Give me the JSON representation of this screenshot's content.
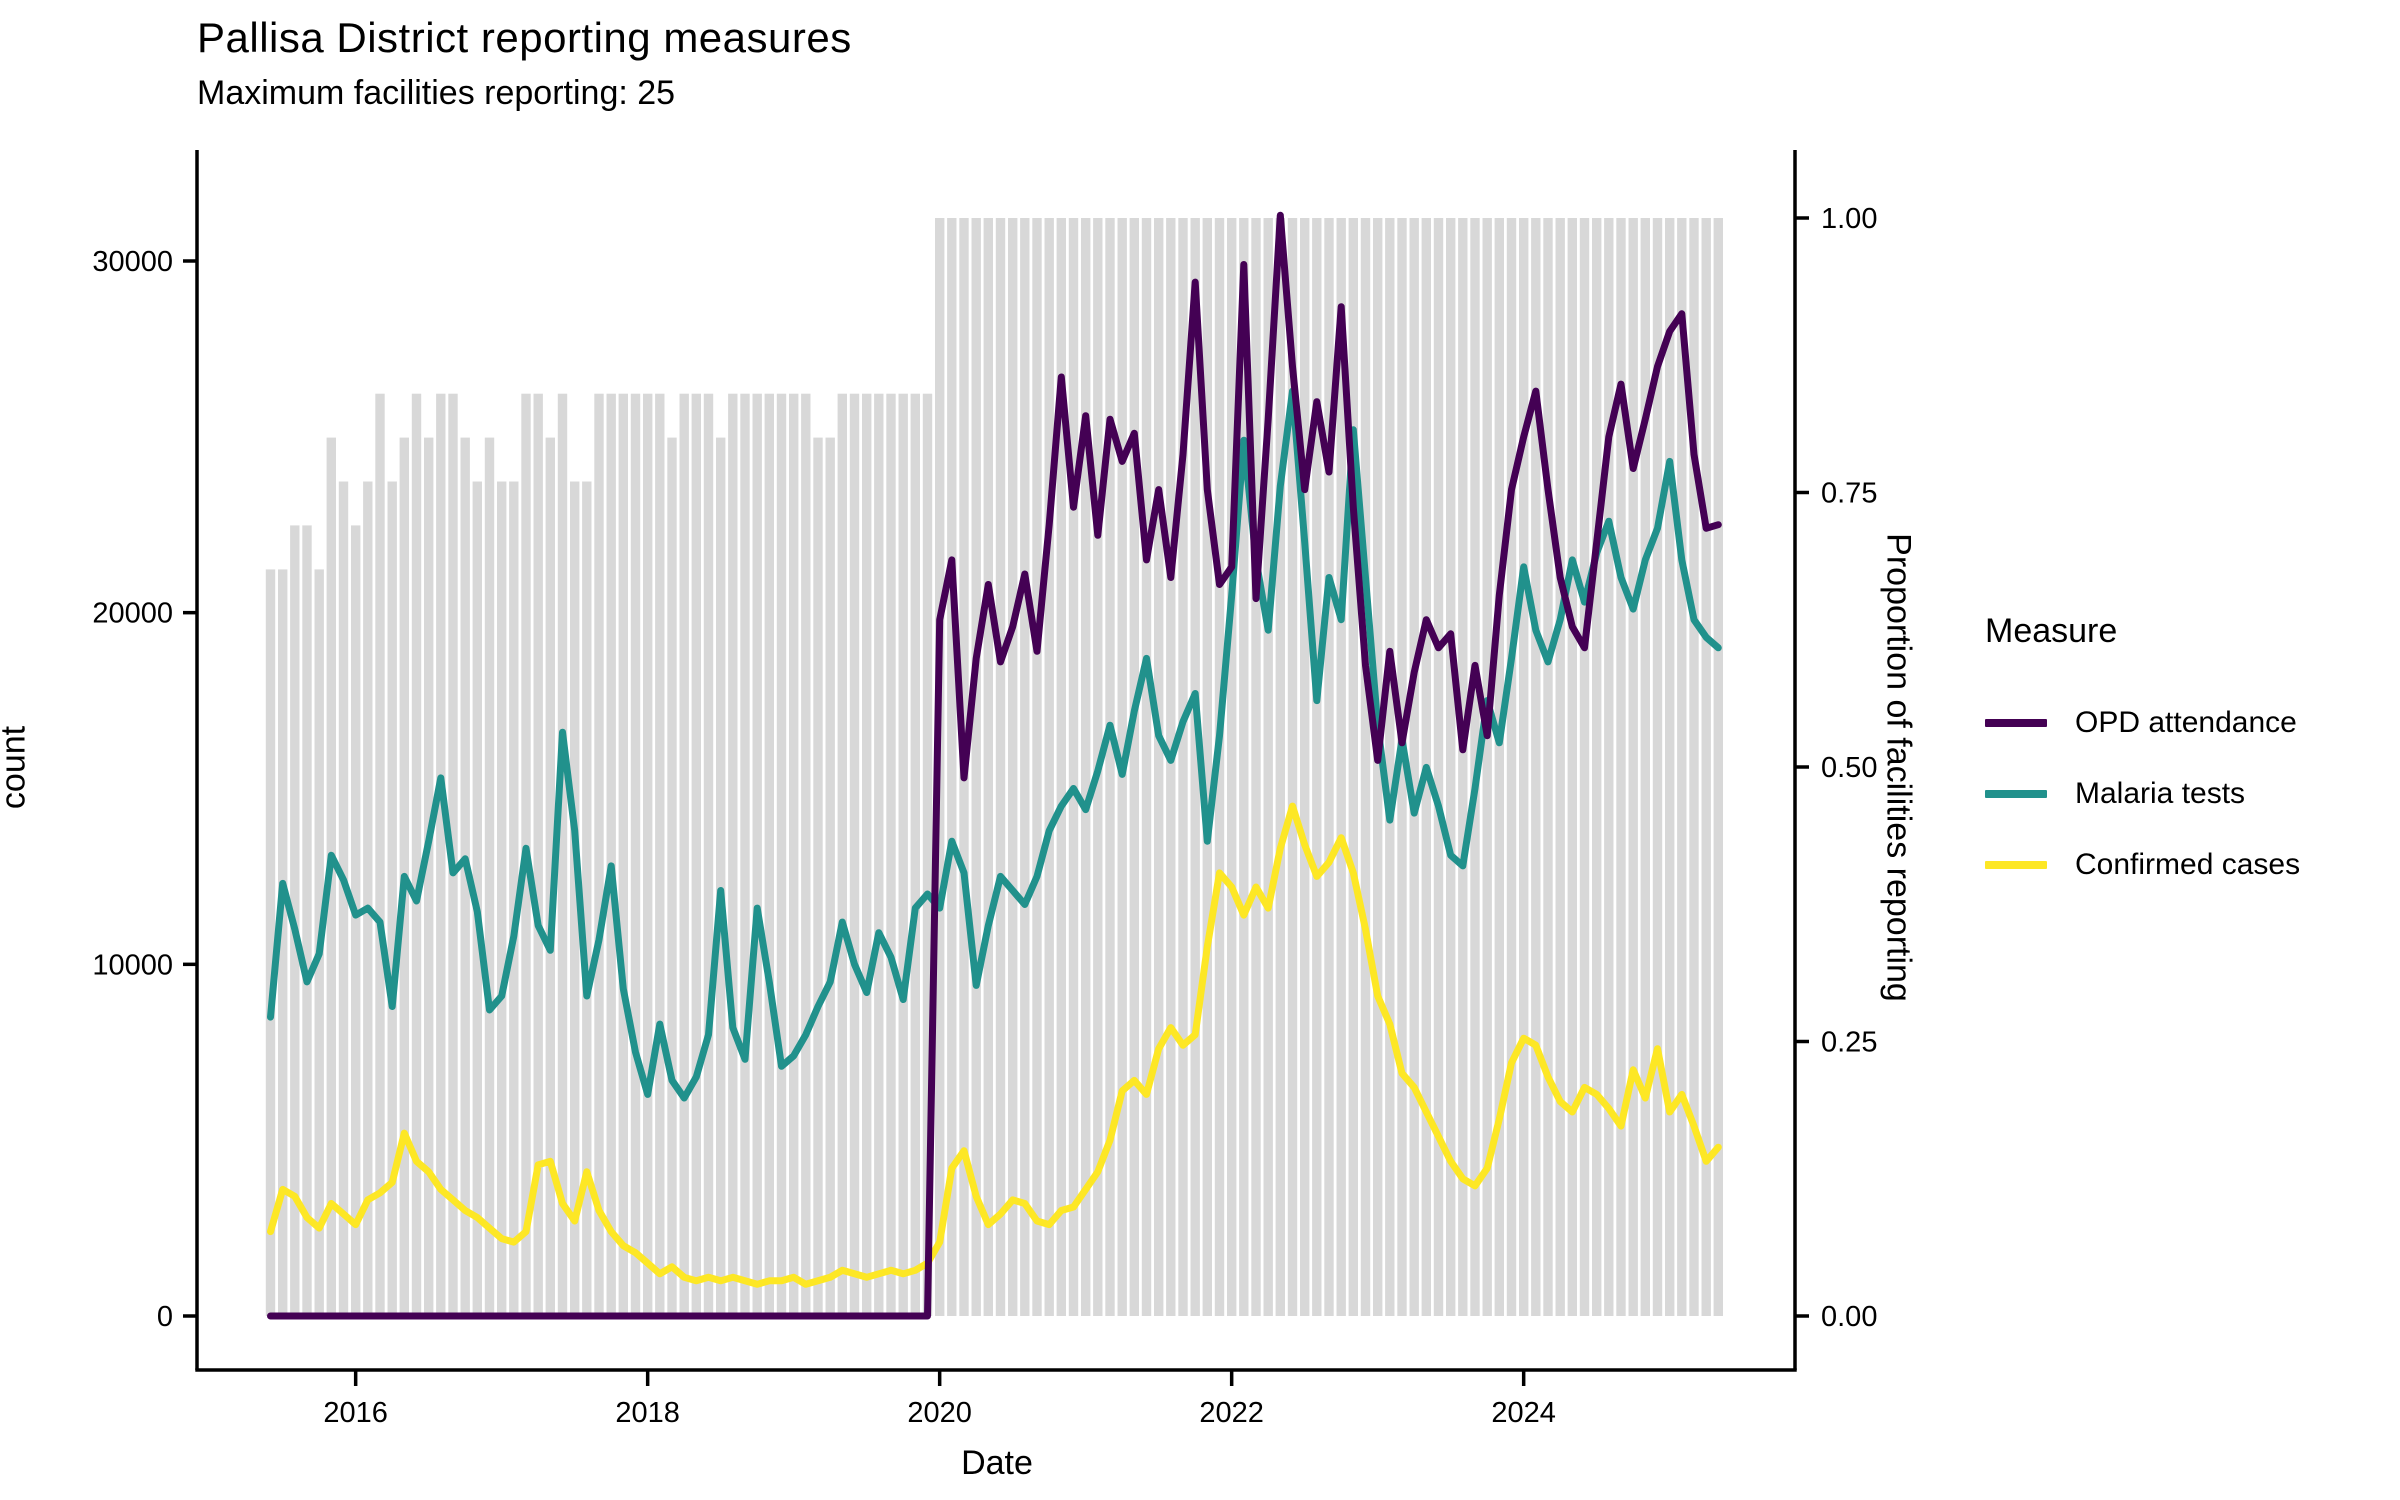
{
  "title": "Pallisa District reporting measures",
  "subtitle": "Maximum facilities reporting: 25",
  "axes": {
    "x": {
      "label": "Date",
      "ticks": [
        2016,
        2018,
        2020,
        2022,
        2024
      ]
    },
    "y_left": {
      "label": "count",
      "ticks": [
        0,
        10000,
        20000,
        30000
      ],
      "range": [
        0,
        31400
      ]
    },
    "y_right": {
      "label": "Proportion of facilities reporting",
      "ticks": [
        "0.00",
        "0.25",
        "0.50",
        "0.75",
        "1.00"
      ],
      "range": [
        0,
        1
      ]
    }
  },
  "legend": {
    "title": "Measure",
    "items": [
      {
        "label": "OPD attendance",
        "color": "#440154"
      },
      {
        "label": "Malaria tests",
        "color": "#21918c"
      },
      {
        "label": "Confirmed cases",
        "color": "#fde725"
      }
    ]
  },
  "colors": {
    "bars": "#d8d8d8",
    "opd": "#440154",
    "malaria": "#21918c",
    "confirmed": "#fde725",
    "axis": "#000000",
    "text": "#000000",
    "background": "#ffffff"
  },
  "chart_data": {
    "type": "line+bar",
    "x": {
      "start": "2015-06",
      "end": "2025-05",
      "frequency": "monthly",
      "n": 120
    },
    "title": "Pallisa District reporting measures",
    "subtitle": "Maximum facilities reporting: 25",
    "xlabel": "Date",
    "ylabel_left": "count",
    "ylabel_right": "Proportion of facilities reporting",
    "legend_position": "right",
    "grid": false,
    "bar_series": {
      "name": "Proportion of facilities reporting",
      "axis": "right",
      "color": "#d8d8d8",
      "values": [
        0.68,
        0.68,
        0.72,
        0.72,
        0.68,
        0.8,
        0.76,
        0.72,
        0.76,
        0.84,
        0.76,
        0.8,
        0.84,
        0.8,
        0.84,
        0.84,
        0.8,
        0.76,
        0.8,
        0.76,
        0.76,
        0.84,
        0.84,
        0.8,
        0.84,
        0.76,
        0.76,
        0.84,
        0.84,
        0.84,
        0.84,
        0.84,
        0.84,
        0.8,
        0.84,
        0.84,
        0.84,
        0.8,
        0.84,
        0.84,
        0.84,
        0.84,
        0.84,
        0.84,
        0.84,
        0.8,
        0.8,
        0.84,
        0.84,
        0.84,
        0.84,
        0.84,
        0.84,
        0.84,
        0.84,
        1,
        1,
        1,
        1,
        1,
        1,
        1,
        1,
        1,
        1,
        1,
        1,
        1,
        1,
        1,
        1,
        1,
        1,
        1,
        1,
        1,
        1,
        1,
        1,
        1,
        1,
        1,
        1,
        1,
        1,
        1,
        1,
        1,
        1,
        1,
        1,
        1,
        1,
        1,
        1,
        1,
        1,
        1,
        1,
        1,
        1,
        1,
        1,
        1,
        1,
        1,
        1,
        1,
        1,
        1,
        1,
        1,
        1,
        1,
        1,
        1,
        1,
        1,
        1,
        1
      ]
    },
    "series": [
      {
        "name": "OPD attendance",
        "axis": "left",
        "color": "#440154",
        "values": [
          0,
          0,
          0,
          0,
          0,
          0,
          0,
          0,
          0,
          0,
          0,
          0,
          0,
          0,
          0,
          0,
          0,
          0,
          0,
          0,
          0,
          0,
          0,
          0,
          0,
          0,
          0,
          0,
          0,
          0,
          0,
          0,
          0,
          0,
          0,
          0,
          0,
          0,
          0,
          0,
          0,
          0,
          0,
          0,
          0,
          0,
          0,
          0,
          0,
          0,
          0,
          0,
          0,
          0,
          0,
          19800,
          21500,
          15300,
          18700,
          20800,
          18600,
          19600,
          21100,
          18900,
          22500,
          26700,
          23000,
          25600,
          22200,
          25500,
          24300,
          25100,
          21500,
          23500,
          21000,
          24500,
          29400,
          23500,
          20800,
          21300,
          29900,
          20400,
          25500,
          31300,
          27000,
          23500,
          26000,
          24000,
          28700,
          23000,
          18500,
          15800,
          18900,
          16300,
          18300,
          19800,
          19000,
          19400,
          16100,
          18500,
          16500,
          20500,
          23500,
          25000,
          26300,
          23500,
          21000,
          19600,
          19000,
          22000,
          25000,
          26500,
          24100,
          25500,
          27000,
          28000,
          28500,
          24500,
          22400,
          22500
        ]
      },
      {
        "name": "Malaria tests",
        "axis": "left",
        "color": "#21918c",
        "values": [
          8500,
          12300,
          11000,
          9500,
          10300,
          13100,
          12400,
          11400,
          11600,
          11200,
          8800,
          12500,
          11800,
          13500,
          15300,
          12600,
          13000,
          11500,
          8700,
          9100,
          10800,
          13300,
          11100,
          10400,
          16600,
          13800,
          9100,
          10700,
          12800,
          9300,
          7500,
          6300,
          8300,
          6700,
          6200,
          6800,
          8000,
          12100,
          8200,
          7300,
          11600,
          9500,
          7100,
          7400,
          8000,
          8800,
          9500,
          11200,
          10000,
          9200,
          10900,
          10200,
          9000,
          11600,
          12000,
          11600,
          13500,
          12600,
          9400,
          11100,
          12500,
          12100,
          11700,
          12500,
          13800,
          14500,
          15000,
          14400,
          15500,
          16800,
          15400,
          17200,
          18700,
          16500,
          15800,
          16900,
          17700,
          13500,
          16500,
          20500,
          24900,
          21500,
          19500,
          23600,
          26300,
          22000,
          17500,
          21000,
          19800,
          25200,
          21000,
          16800,
          14100,
          16400,
          14300,
          15600,
          14500,
          13100,
          12800,
          15000,
          17500,
          16300,
          18700,
          21300,
          19500,
          18600,
          19800,
          21500,
          20300,
          21700,
          22600,
          21000,
          20100,
          21500,
          22400,
          24300,
          21500,
          19800,
          19300,
          19000
        ]
      },
      {
        "name": "Confirmed cases",
        "axis": "left",
        "color": "#fde725",
        "values": [
          2400,
          3600,
          3400,
          2800,
          2500,
          3200,
          2900,
          2600,
          3300,
          3500,
          3800,
          5200,
          4400,
          4100,
          3600,
          3300,
          3000,
          2800,
          2500,
          2200,
          2100,
          2400,
          4300,
          4400,
          3200,
          2700,
          4100,
          3000,
          2400,
          2000,
          1800,
          1500,
          1200,
          1400,
          1100,
          1000,
          1100,
          1000,
          1100,
          1000,
          900,
          1000,
          1000,
          1100,
          900,
          1000,
          1100,
          1300,
          1200,
          1100,
          1200,
          1300,
          1200,
          1300,
          1500,
          2100,
          4200,
          4700,
          3400,
          2600,
          2900,
          3300,
          3200,
          2700,
          2600,
          3000,
          3100,
          3600,
          4100,
          5000,
          6400,
          6700,
          6300,
          7600,
          8200,
          7700,
          8000,
          10500,
          12600,
          12200,
          11400,
          12200,
          11600,
          13300,
          14500,
          13400,
          12500,
          12900,
          13600,
          12600,
          11000,
          9100,
          8300,
          6900,
          6500,
          5800,
          5100,
          4400,
          3900,
          3700,
          4200,
          5600,
          7200,
          7900,
          7700,
          6800,
          6100,
          5800,
          6500,
          6300,
          5900,
          5400,
          7000,
          6200,
          7600,
          5800,
          6300,
          5400,
          4400,
          4800
        ]
      }
    ]
  }
}
